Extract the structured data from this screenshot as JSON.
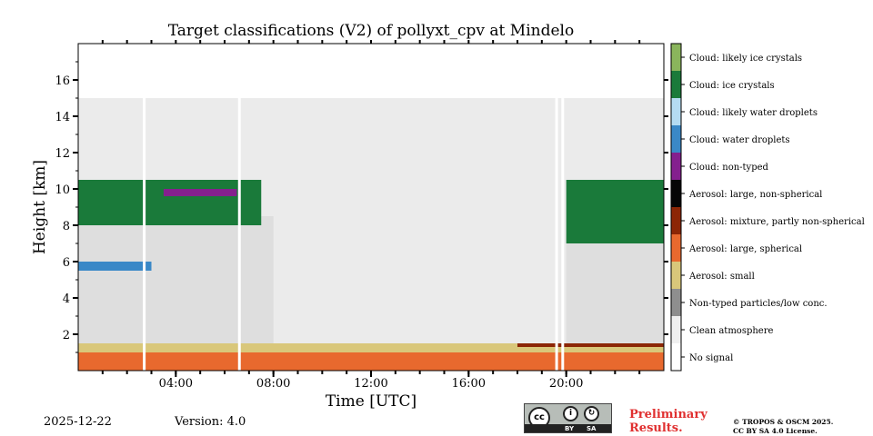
{
  "chart_data": {
    "type": "heatmap",
    "title": "Target classifications (V2) of pollyxt_cpv at Mindelo",
    "xlabel": "Time [UTC]",
    "ylabel": "Height [km]",
    "xlim_hours": [
      0,
      24
    ],
    "ylim_km": [
      0,
      18
    ],
    "x_ticks": [
      {
        "hour": 4,
        "label": "04:00"
      },
      {
        "hour": 8,
        "label": "08:00"
      },
      {
        "hour": 12,
        "label": "12:00"
      },
      {
        "hour": 16,
        "label": "16:00"
      },
      {
        "hour": 20,
        "label": "20:00"
      }
    ],
    "y_ticks": [
      {
        "km": 2,
        "label": "2"
      },
      {
        "km": 4,
        "label": "4"
      },
      {
        "km": 6,
        "label": "6"
      },
      {
        "km": 8,
        "label": "8"
      },
      {
        "km": 10,
        "label": "10"
      },
      {
        "km": 12,
        "label": "12"
      },
      {
        "km": 14,
        "label": "14"
      },
      {
        "km": 16,
        "label": "16"
      }
    ],
    "classes": [
      {
        "id": 0,
        "label": "No signal",
        "color": "#ffffff"
      },
      {
        "id": 1,
        "label": "Clean atmosphere",
        "color": "#f0f0f0"
      },
      {
        "id": 2,
        "label": "Non-typed particles/low conc.",
        "color": "#8e8e8e"
      },
      {
        "id": 3,
        "label": "Aerosol: small",
        "color": "#d9c77a"
      },
      {
        "id": 4,
        "label": "Aerosol: large, spherical",
        "color": "#e8692e"
      },
      {
        "id": 5,
        "label": "Aerosol: mixture, partly non-spherical",
        "color": "#8c2606"
      },
      {
        "id": 6,
        "label": "Aerosol: large, non-spherical",
        "color": "#060606"
      },
      {
        "id": 7,
        "label": "Cloud: non-typed",
        "color": "#84208e"
      },
      {
        "id": 8,
        "label": "Cloud: water droplets",
        "color": "#3a88c7"
      },
      {
        "id": 9,
        "label": "Cloud: likely water droplets",
        "color": "#b4dbf2"
      },
      {
        "id": 10,
        "label": "Cloud: ice crystals",
        "color": "#1a7a3a"
      },
      {
        "id": 11,
        "label": "Cloud: likely ice crystals",
        "color": "#8ab55c"
      }
    ],
    "layers": [
      {
        "class": "Aerosol: large, spherical",
        "from_hour": 0,
        "to_hour": 24,
        "base_km": 0.0,
        "top_km": 1.4
      },
      {
        "class": "Aerosol: small",
        "from_hour": 0,
        "to_hour": 24,
        "base_km": 1.0,
        "top_km": 1.5
      },
      {
        "class": "Aerosol: mixture, partly non-spherical",
        "from_hour": 18,
        "to_hour": 24,
        "base_km": 1.3,
        "top_km": 1.5
      },
      {
        "class": "Clean atmosphere",
        "from_hour": 0,
        "to_hour": 8,
        "base_km": 1.5,
        "top_km": 8.5
      },
      {
        "class": "Clean atmosphere",
        "from_hour": 20,
        "to_hour": 24,
        "base_km": 1.5,
        "top_km": 7.5
      },
      {
        "class": "Non-typed particles/low conc.",
        "from_hour": 0,
        "to_hour": 24,
        "base_km": 1.5,
        "top_km": 15.0
      },
      {
        "class": "Cloud: ice crystals",
        "from_hour": 0,
        "to_hour": 7.5,
        "base_km": 8.0,
        "top_km": 10.5
      },
      {
        "class": "Cloud: ice crystals",
        "from_hour": 20,
        "to_hour": 24,
        "base_km": 7.0,
        "top_km": 10.5
      },
      {
        "class": "Cloud: water droplets",
        "from_hour": 0,
        "to_hour": 3,
        "base_km": 5.5,
        "top_km": 6.0
      },
      {
        "class": "Cloud: non-typed",
        "from_hour": 3.5,
        "to_hour": 6.5,
        "base_km": 9.6,
        "top_km": 10.0
      }
    ],
    "gaps_hours": [
      2.65,
      6.55,
      19.55,
      19.8
    ]
  },
  "footer": {
    "date": "2025-12-22",
    "version": "Version: 4.0",
    "preliminary_line1": "Preliminary",
    "preliminary_line2": "Results.",
    "copyright_line1": "© TROPOS & OSCM 2025.",
    "copyright_line2": "CC BY SA 4.0 License.",
    "license_badge": {
      "cc": "cc",
      "by": "BY",
      "sa": "SA"
    }
  }
}
